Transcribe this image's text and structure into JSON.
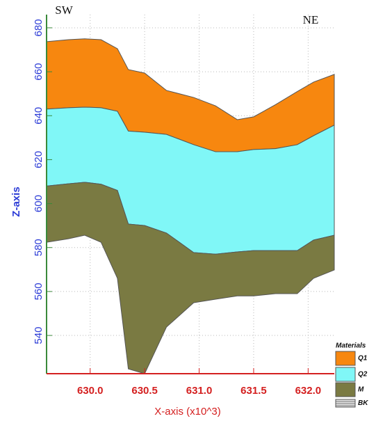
{
  "chart_data": {
    "type": "area",
    "x_label": "X-axis (x10^3)",
    "y_label": "Z-axis",
    "annotations": [
      "SW",
      "NE"
    ],
    "legend_title": "Materials",
    "legend": "bottom-right",
    "grid": true,
    "xlim": [
      629.6,
      632.24
    ],
    "ylim": [
      522.6,
      686
    ],
    "xticks": [
      {
        "value": 630,
        "label": "630.0"
      },
      {
        "value": 630.5,
        "label": "630.5"
      },
      {
        "value": 631,
        "label": "631.0"
      },
      {
        "value": 631.5,
        "label": "631.5"
      },
      {
        "value": 632,
        "label": "632.0"
      }
    ],
    "yticks": [
      540,
      560,
      580,
      600,
      620,
      640,
      660,
      680
    ],
    "x": [
      629.6,
      629.8,
      629.95,
      630.1,
      630.25,
      630.35,
      630.5,
      630.7,
      630.95,
      631.15,
      631.35,
      631.5,
      631.7,
      631.9,
      632.05,
      632.24
    ],
    "series": [
      {
        "name": "Q1",
        "color": "#f7870f",
        "top": [
          673.7,
          674.6,
          675,
          674.6,
          670.5,
          661,
          659.4,
          651.5,
          648.3,
          644.5,
          638.2,
          639.5,
          645,
          651,
          655.3,
          658.8
        ],
        "bottom": [
          643,
          643.6,
          643.9,
          643.6,
          642,
          633,
          632.5,
          631.5,
          626.8,
          623.6,
          623.6,
          624.6,
          625,
          626.8,
          630.9,
          635.7
        ]
      },
      {
        "name": "Q2",
        "color": "#80f7f7",
        "top": [
          643,
          643.6,
          643.9,
          643.6,
          642,
          633,
          632.5,
          631.5,
          626.8,
          623.6,
          623.6,
          624.6,
          625,
          626.8,
          630.9,
          635.7
        ],
        "bottom": [
          608,
          609,
          609.7,
          608.8,
          606,
          590.7,
          590,
          586.6,
          577.7,
          577,
          578,
          578.6,
          578.6,
          578.6,
          583.4,
          585.6
        ]
      },
      {
        "name": "M",
        "color": "#7a7a42",
        "top": [
          608,
          609,
          609.7,
          608.8,
          606,
          590.7,
          590,
          586.6,
          577.7,
          577,
          578,
          578.6,
          578.6,
          578.6,
          583.4,
          585.6
        ],
        "bottom": [
          582.4,
          584,
          585.6,
          582.4,
          566,
          524.8,
          522.6,
          543.8,
          554.9,
          556.5,
          558,
          558,
          559,
          559,
          566,
          569.8
        ]
      },
      {
        "name": "BK",
        "color": "#bdbdbd",
        "top": [],
        "bottom": []
      }
    ]
  }
}
